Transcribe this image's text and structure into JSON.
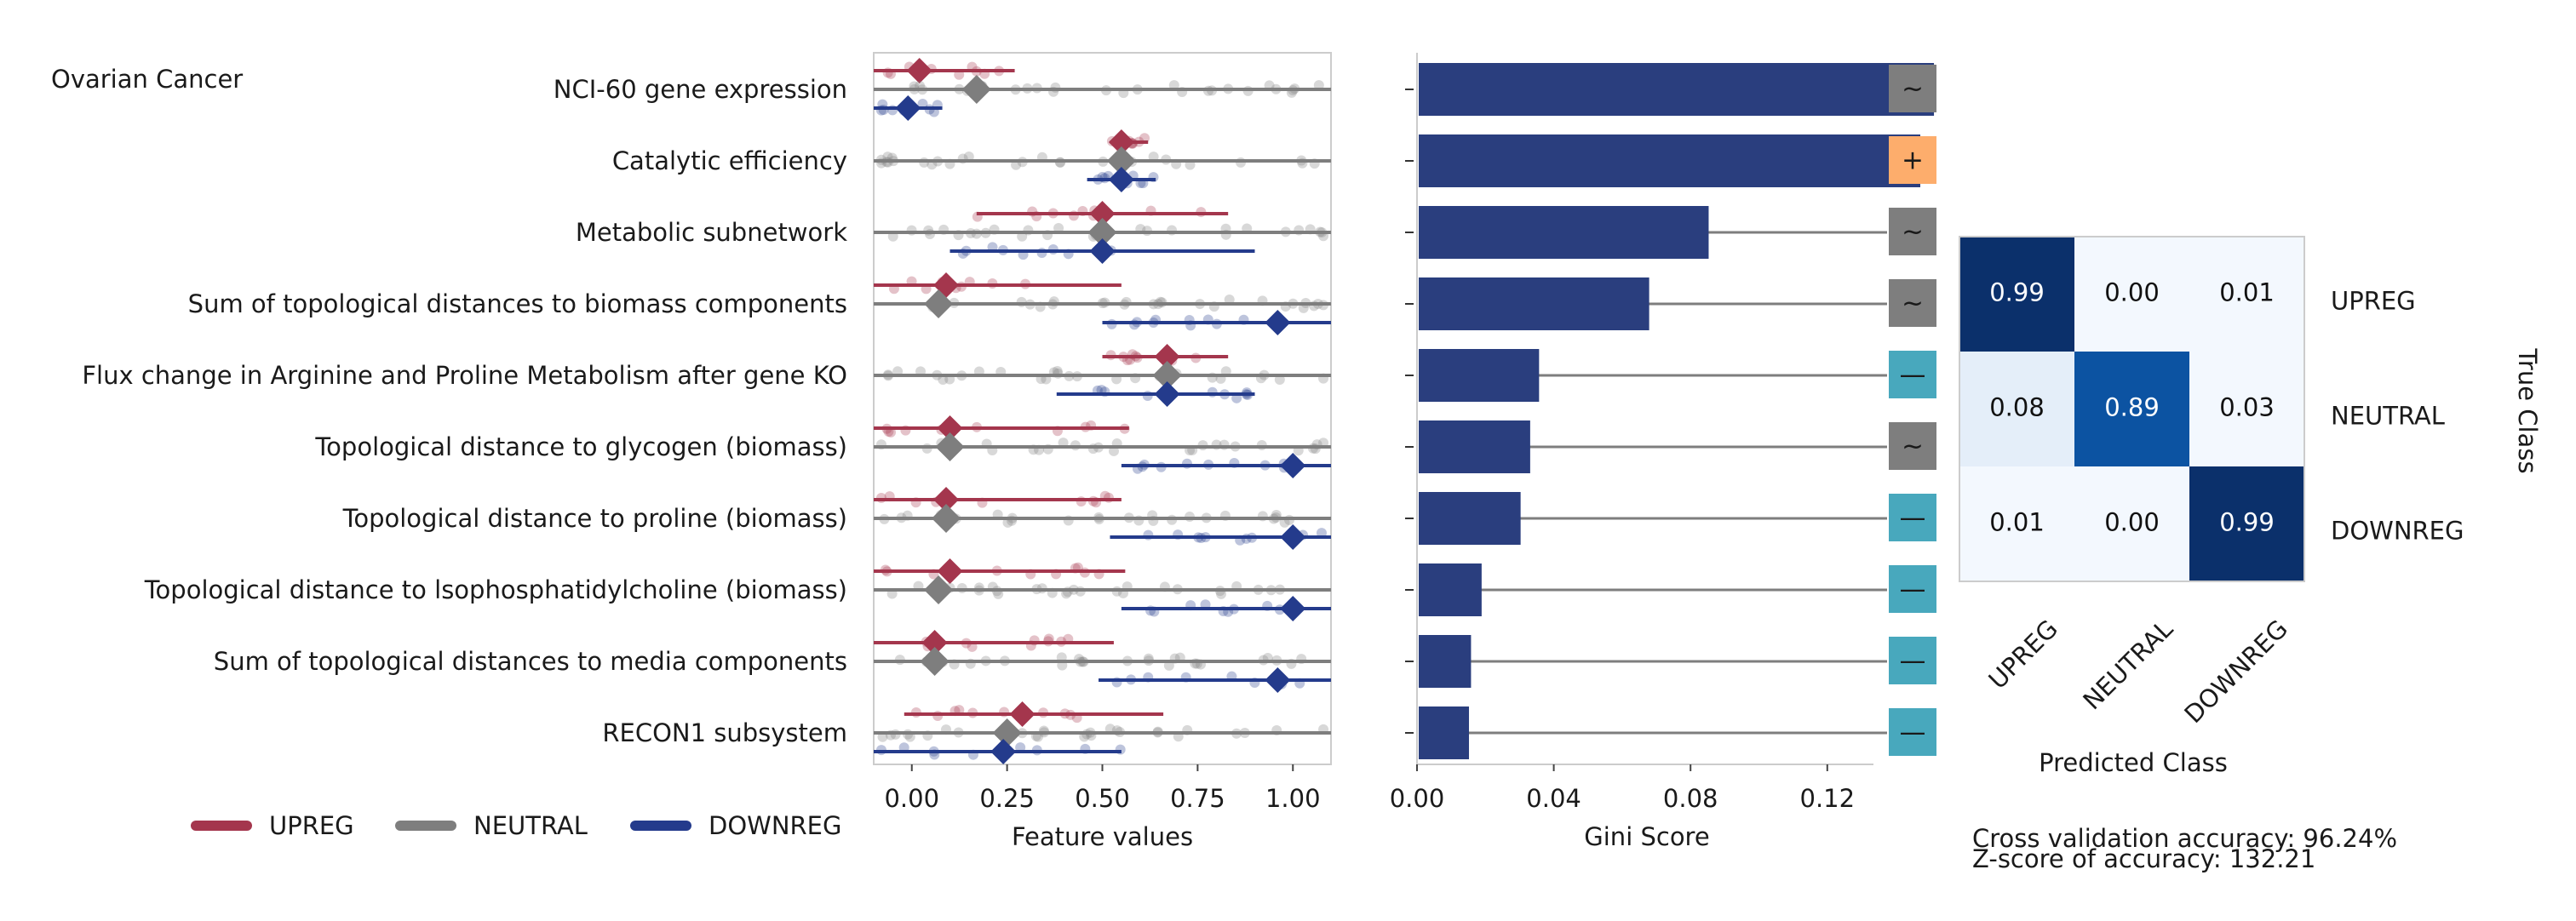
{
  "panel_title": "Ovarian Cancer",
  "colors": {
    "upreg": "#a4364d",
    "neutral": "#7e7e7e",
    "downreg": "#243b8c",
    "bar": "#2a3e7e",
    "sign_neutral": "#7e7e7e",
    "sign_plus": "#fdad6c",
    "sign_minus": "#48a8bd"
  },
  "legend": [
    {
      "key": "upreg",
      "label": "UPREG"
    },
    {
      "key": "neutral",
      "label": "NEUTRAL"
    },
    {
      "key": "downreg",
      "label": "DOWNREG"
    }
  ],
  "stats": {
    "accuracy": "Cross validation accuracy: 96.24%",
    "zscore": "Z-score of accuracy: 132.21"
  },
  "chart_data": [
    {
      "type": "scatter",
      "name": "feature-values",
      "xlabel": "Feature values",
      "xlim": [
        -0.1,
        1.1
      ],
      "xticks": [
        0.0,
        0.25,
        0.5,
        0.75,
        1.0
      ],
      "xtick_labels": [
        "0.00",
        "0.25",
        "0.50",
        "0.75",
        "1.00"
      ],
      "features": [
        {
          "label": "NCI-60 gene expression",
          "upreg": {
            "mean": 0.02,
            "lo": -0.1,
            "hi": 0.27
          },
          "neutral": {
            "mean": 0.17,
            "lo": -0.1,
            "hi": 1.1
          },
          "downreg": {
            "mean": -0.01,
            "lo": -0.1,
            "hi": 0.08
          }
        },
        {
          "label": "Catalytic efficiency",
          "upreg": {
            "mean": 0.55,
            "lo": 0.52,
            "hi": 0.62
          },
          "neutral": {
            "mean": 0.55,
            "lo": -0.1,
            "hi": 1.1
          },
          "downreg": {
            "mean": 0.55,
            "lo": 0.46,
            "hi": 0.64
          }
        },
        {
          "label": "Metabolic subnetwork",
          "upreg": {
            "mean": 0.5,
            "lo": 0.17,
            "hi": 0.83
          },
          "neutral": {
            "mean": 0.5,
            "lo": -0.1,
            "hi": 1.1
          },
          "downreg": {
            "mean": 0.5,
            "lo": 0.1,
            "hi": 0.9
          }
        },
        {
          "label": "Sum of topological distances to biomass components",
          "upreg": {
            "mean": 0.09,
            "lo": -0.1,
            "hi": 0.55
          },
          "neutral": {
            "mean": 0.07,
            "lo": -0.1,
            "hi": 1.1
          },
          "downreg": {
            "mean": 0.96,
            "lo": 0.5,
            "hi": 1.1
          }
        },
        {
          "label": "Flux change in Arginine and Proline Metabolism after gene KO",
          "upreg": {
            "mean": 0.67,
            "lo": 0.5,
            "hi": 0.83
          },
          "neutral": {
            "mean": 0.67,
            "lo": -0.1,
            "hi": 1.1
          },
          "downreg": {
            "mean": 0.67,
            "lo": 0.38,
            "hi": 0.9
          }
        },
        {
          "label": "Topological distance to glycogen (biomass)",
          "upreg": {
            "mean": 0.1,
            "lo": -0.1,
            "hi": 0.57
          },
          "neutral": {
            "mean": 0.1,
            "lo": -0.1,
            "hi": 1.1
          },
          "downreg": {
            "mean": 1.0,
            "lo": 0.55,
            "hi": 1.1
          }
        },
        {
          "label": "Topological distance to proline (biomass)",
          "upreg": {
            "mean": 0.09,
            "lo": -0.1,
            "hi": 0.55
          },
          "neutral": {
            "mean": 0.09,
            "lo": -0.1,
            "hi": 1.1
          },
          "downreg": {
            "mean": 1.0,
            "lo": 0.52,
            "hi": 1.1
          }
        },
        {
          "label": "Topological distance to lsophosphatidylcholine (biomass)",
          "upreg": {
            "mean": 0.1,
            "lo": -0.1,
            "hi": 0.56
          },
          "neutral": {
            "mean": 0.07,
            "lo": -0.1,
            "hi": 1.1
          },
          "downreg": {
            "mean": 1.0,
            "lo": 0.55,
            "hi": 1.1
          }
        },
        {
          "label": "Sum of topological distances to media components",
          "upreg": {
            "mean": 0.06,
            "lo": -0.1,
            "hi": 0.53
          },
          "neutral": {
            "mean": 0.06,
            "lo": -0.1,
            "hi": 1.1
          },
          "downreg": {
            "mean": 0.96,
            "lo": 0.49,
            "hi": 1.1
          }
        },
        {
          "label": "RECON1 subsystem",
          "upreg": {
            "mean": 0.29,
            "lo": -0.02,
            "hi": 0.66
          },
          "neutral": {
            "mean": 0.25,
            "lo": -0.1,
            "hi": 1.1
          },
          "downreg": {
            "mean": 0.24,
            "lo": -0.1,
            "hi": 0.55
          }
        }
      ]
    },
    {
      "type": "bar",
      "name": "gini-importance",
      "orientation": "horizontal",
      "xlabel": "Gini Score",
      "xlim": [
        0,
        0.1335
      ],
      "xticks": [
        0.0,
        0.04,
        0.08,
        0.12
      ],
      "xtick_labels": [
        "0.00",
        "0.04",
        "0.08",
        "0.12"
      ],
      "values": [
        0.1507,
        0.1467,
        0.0848,
        0.0674,
        0.0352,
        0.0326,
        0.0298,
        0.0184,
        0.0153,
        0.0147
      ],
      "signs": [
        "~",
        "+",
        "~",
        "~",
        "—",
        "~",
        "—",
        "—",
        "—",
        "—"
      ],
      "sign_kinds": [
        "neutral",
        "plus",
        "neutral",
        "neutral",
        "minus",
        "neutral",
        "minus",
        "minus",
        "minus",
        "minus"
      ]
    },
    {
      "type": "heatmap",
      "name": "confusion-matrix",
      "xlabel": "Predicted Class",
      "ylabel": "True Class",
      "row_labels": [
        "UPREG",
        "NEUTRAL",
        "DOWNREG"
      ],
      "col_labels": [
        "UPREG",
        "NEUTRAL",
        "DOWNREG"
      ],
      "values": [
        [
          0.99,
          0.0,
          0.01
        ],
        [
          0.08,
          0.89,
          0.03
        ],
        [
          0.01,
          0.0,
          0.99
        ]
      ],
      "value_labels": [
        [
          "0.99",
          "0.00",
          "0.01"
        ],
        [
          "0.08",
          "0.89",
          "0.03"
        ],
        [
          "0.01",
          "0.00",
          "0.99"
        ]
      ]
    }
  ]
}
